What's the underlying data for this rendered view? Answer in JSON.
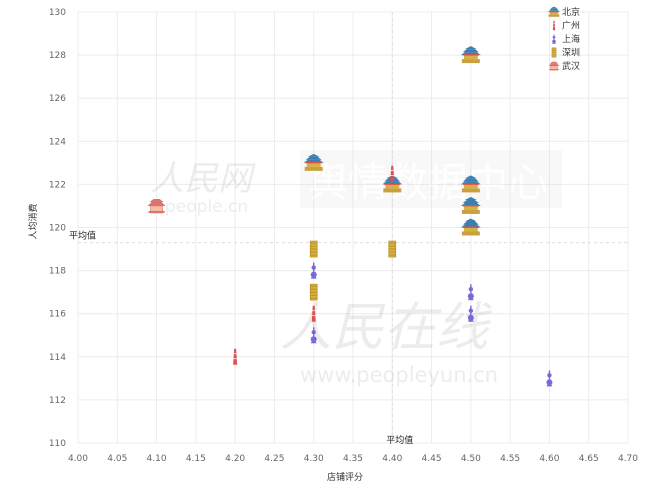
{
  "chart_data": {
    "type": "scatter",
    "title": "",
    "xlabel": "店铺评分",
    "ylabel": "人均消费",
    "xlim": [
      4.0,
      4.7
    ],
    "ylim": [
      110,
      130
    ],
    "x_ticks": [
      "4.00",
      "4.05",
      "4.10",
      "4.15",
      "4.20",
      "4.25",
      "4.30",
      "4.35",
      "4.40",
      "4.45",
      "4.50",
      "4.55",
      "4.60",
      "4.65",
      "4.70"
    ],
    "y_ticks": [
      "110",
      "112",
      "114",
      "116",
      "118",
      "120",
      "122",
      "124",
      "126",
      "128",
      "130"
    ],
    "grid": true,
    "legend_position": "top-right",
    "reference_lines": [
      {
        "axis": "y",
        "value": 119.3,
        "label": "平均值"
      },
      {
        "axis": "x",
        "value": 4.4,
        "label": "平均值"
      }
    ],
    "series": [
      {
        "name": "北京",
        "color": "#d9a520",
        "icon": "temple-of-heaven-icon",
        "points": [
          [
            4.3,
            123
          ],
          [
            4.4,
            122
          ],
          [
            4.5,
            128
          ],
          [
            4.5,
            122
          ],
          [
            4.5,
            121
          ],
          [
            4.5,
            120
          ]
        ]
      },
      {
        "name": "广州",
        "color": "#e05050",
        "icon": "canton-tower-icon",
        "points": [
          [
            4.2,
            114
          ],
          [
            4.3,
            116
          ],
          [
            4.4,
            122.5
          ]
        ]
      },
      {
        "name": "上海",
        "color": "#7b68d8",
        "icon": "oriental-pearl-tower-icon",
        "points": [
          [
            4.3,
            118
          ],
          [
            4.3,
            115
          ],
          [
            4.5,
            117
          ],
          [
            4.5,
            116
          ],
          [
            4.6,
            113
          ]
        ]
      },
      {
        "name": "深圳",
        "color": "#c89a18",
        "icon": "skyscraper-icon",
        "points": [
          [
            4.3,
            119
          ],
          [
            4.3,
            117
          ],
          [
            4.4,
            119
          ]
        ]
      },
      {
        "name": "武汉",
        "color": "#e07070",
        "icon": "yellow-crane-tower-icon",
        "points": [
          [
            4.1,
            121
          ]
        ]
      }
    ]
  },
  "watermarks": {
    "top_brand": "人民网",
    "top_url": "people.cn",
    "top_center": "舆情数据中心",
    "bottom_brand": "人民在线",
    "bottom_url": "www.peopleyun.cn"
  }
}
